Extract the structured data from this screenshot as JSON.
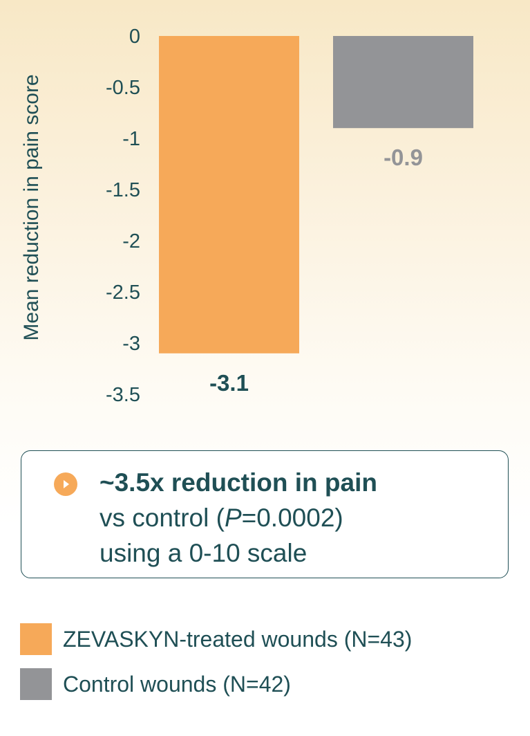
{
  "chart_data": {
    "type": "bar",
    "categories": [
      "ZEVASKYN-treated wounds (N=43)",
      "Control wounds (N=42)"
    ],
    "values": [
      -3.1,
      -0.9
    ],
    "value_labels": [
      "-3.1",
      "-0.9"
    ],
    "colors": [
      "#f6a959",
      "#939497"
    ],
    "label_colors": [
      "#1f4f55",
      "#939497"
    ],
    "ylabel": "Mean reduction in pain score",
    "ylim": [
      -3.5,
      0
    ],
    "yticks": [
      0,
      -0.5,
      -1,
      -1.5,
      -2,
      -2.5,
      -3,
      -3.5
    ],
    "ytick_labels": [
      "0",
      "-0.5",
      "-1",
      "-1.5",
      "-2",
      "-2.5",
      "-3",
      "-3.5"
    ],
    "grid": false,
    "legend_position": "bottom"
  },
  "callout": {
    "headline": "~3.5x reduction in pain",
    "line2_prefix": "vs control (",
    "line2_italic": "P",
    "line2_suffix": "=0.0002)",
    "line3": "using a 0-10 scale",
    "icon": "play-circle-icon"
  },
  "legend": [
    {
      "label": "ZEVASKYN-treated wounds (N=43)",
      "color": "#f6a959"
    },
    {
      "label": "Control wounds (N=42)",
      "color": "#939497"
    }
  ]
}
